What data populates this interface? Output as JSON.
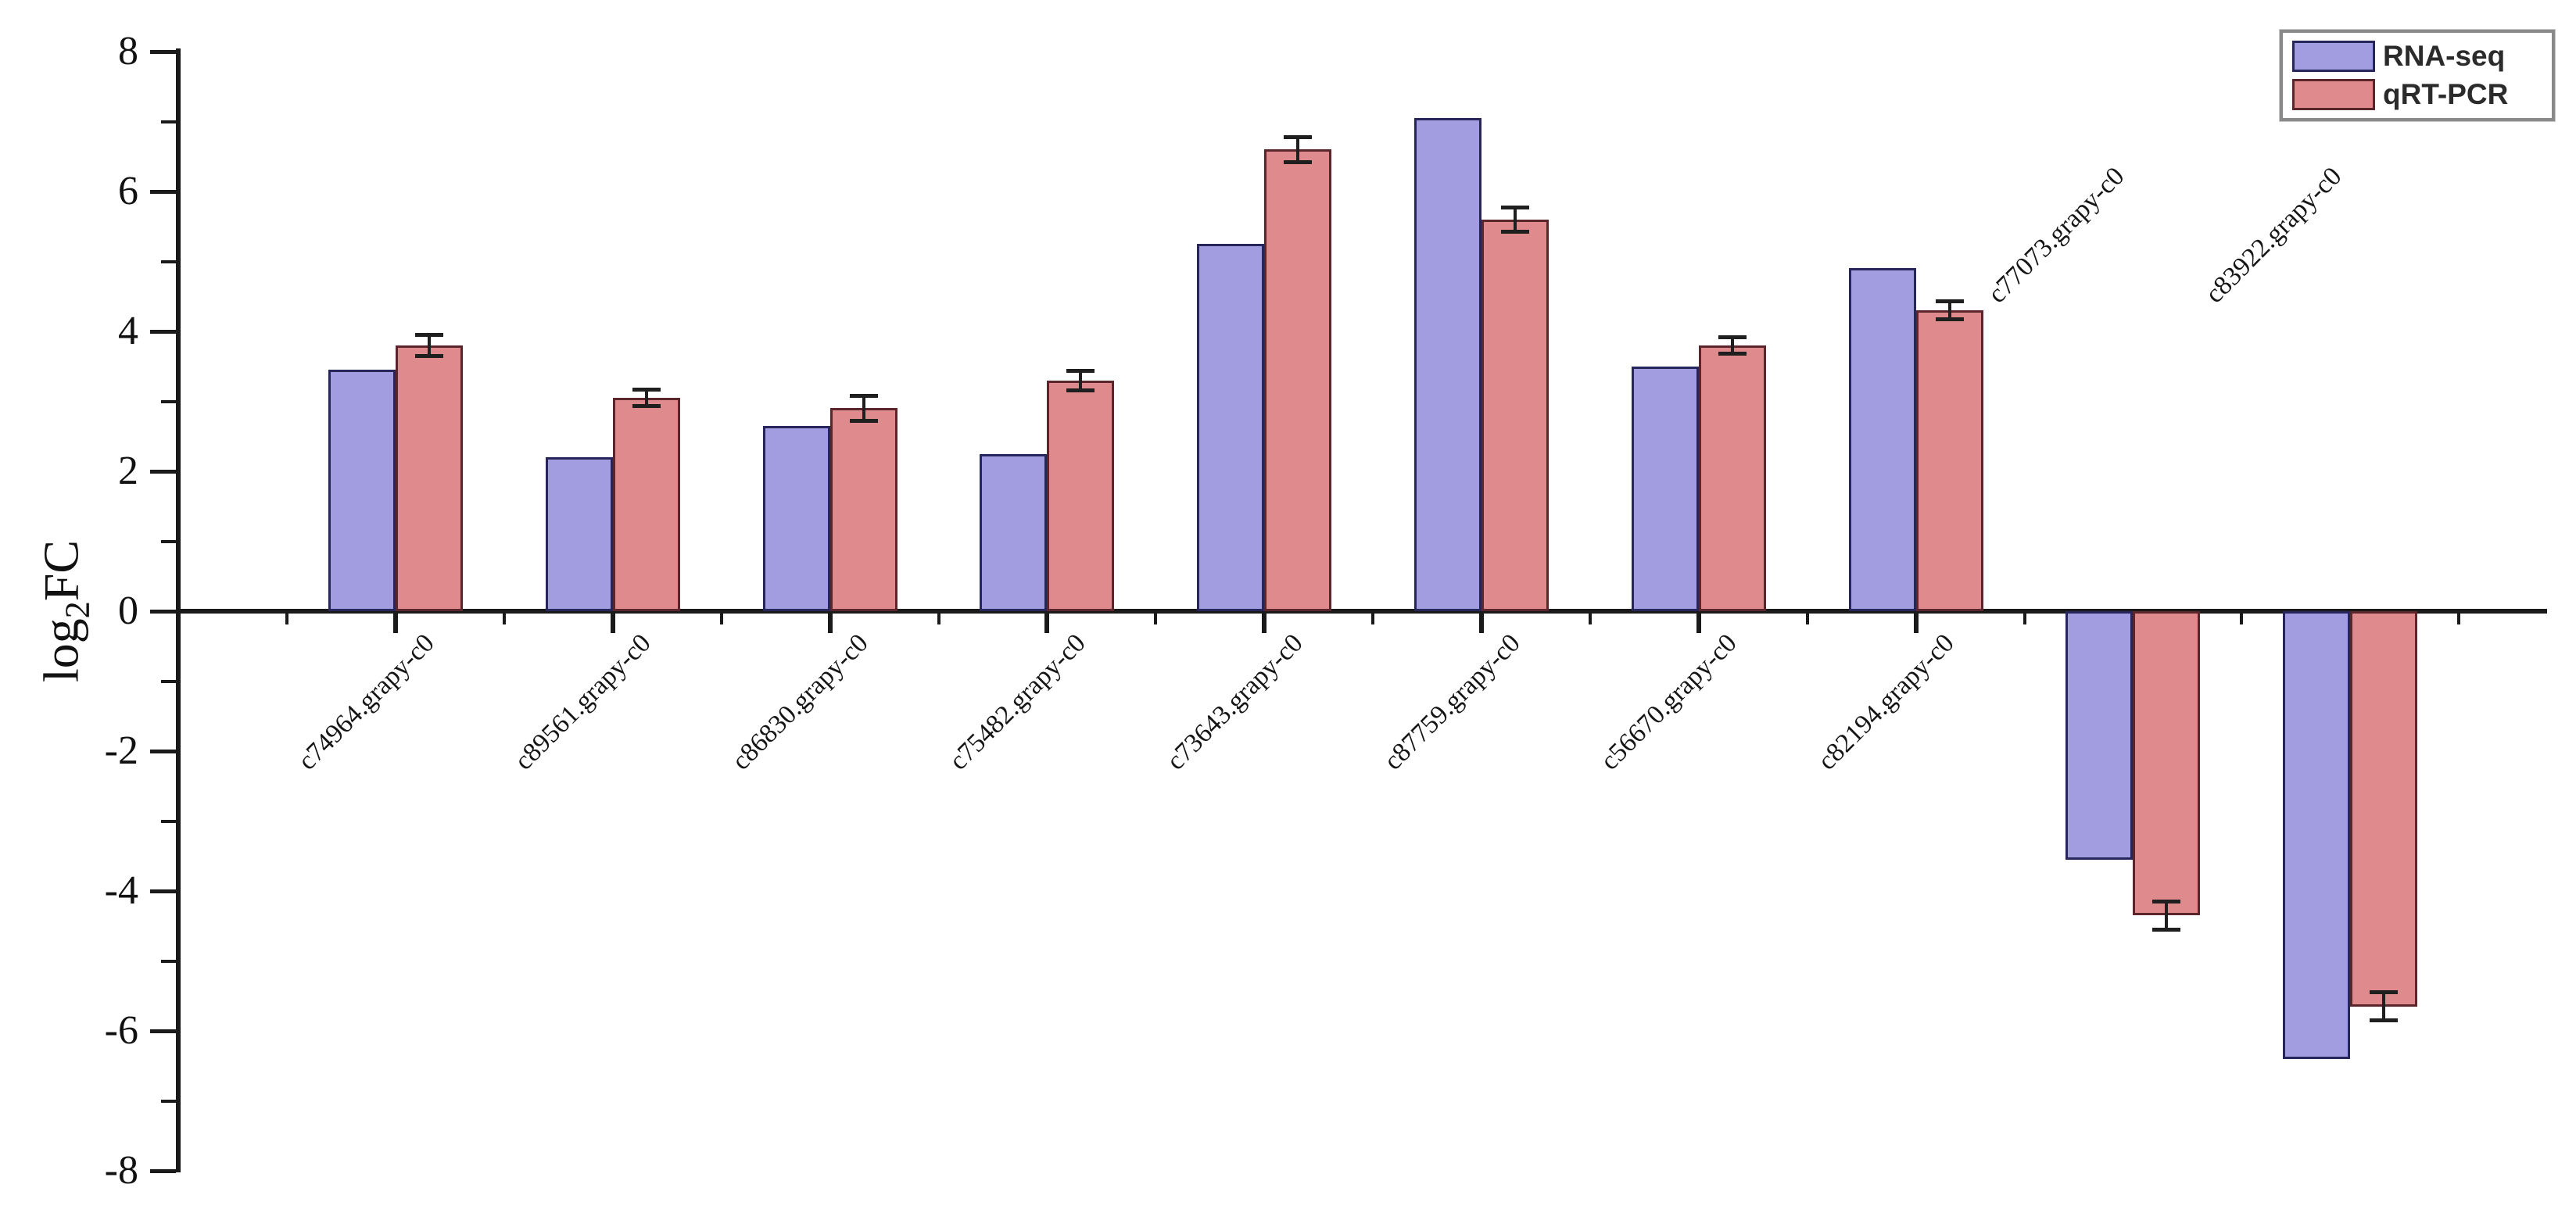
{
  "figure": {
    "background": "#ffffff"
  },
  "legend": {
    "items": [
      {
        "label": "RNA-seq",
        "fill": "#a29de1",
        "border": "#26265a"
      },
      {
        "label": "qRT-PCR",
        "fill": "#df8b8e",
        "border": "#5a262c"
      }
    ]
  },
  "chart_data": {
    "type": "bar",
    "title": "",
    "xlabel": "",
    "ylabel": "log2FC",
    "ylabel_display": {
      "pre": "log",
      "sub": "2",
      "post": "FC"
    },
    "ylim": [
      -8,
      8
    ],
    "y_major_ticks": [
      8,
      6,
      4,
      2,
      0,
      -2,
      -4,
      -6,
      -8
    ],
    "y_minor_step": 1,
    "grid": false,
    "legend_position": "top-right",
    "categories": [
      "c74964.grapy-c0",
      "c89561.grapy-c0",
      "c86830.grapy-c0",
      "c75482.grapy-c0",
      "c73643.grapy-c0",
      "c87759.grapy-c0",
      "c56670.grapy-c0",
      "c82194.grapy-c0",
      "c77073.grapy-c0",
      "c83922.grapy-c0"
    ],
    "series": [
      {
        "name": "RNA-seq",
        "values": [
          3.45,
          2.2,
          2.65,
          2.25,
          5.25,
          7.05,
          3.5,
          4.9,
          -3.55,
          -6.4
        ]
      },
      {
        "name": "qRT-PCR",
        "values": [
          3.8,
          3.05,
          2.9,
          3.3,
          6.6,
          5.6,
          3.8,
          4.3,
          -4.35,
          -5.65
        ],
        "errors": [
          0.15,
          0.12,
          0.18,
          0.14,
          0.18,
          0.17,
          0.12,
          0.13,
          0.2,
          0.2
        ]
      }
    ]
  }
}
